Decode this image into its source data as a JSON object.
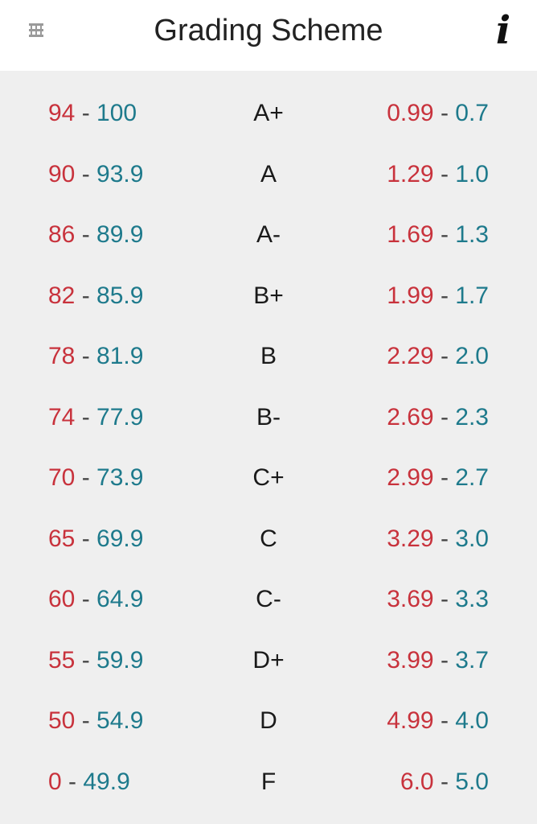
{
  "header": {
    "title": "Grading Scheme",
    "menu_icon": "hamburger-menu-icon",
    "info_icon": "info-icon",
    "info_glyph": "i"
  },
  "colors": {
    "low_value": "#c8323c",
    "high_value": "#1e7a8c",
    "separator": "#444444"
  },
  "separator": " - ",
  "rows": [
    {
      "range_min": "94",
      "range_max": "100",
      "grade": "A+",
      "gpa_high": "0.99",
      "gpa_low": "0.7"
    },
    {
      "range_min": "90",
      "range_max": "93.9",
      "grade": "A",
      "gpa_high": "1.29",
      "gpa_low": "1.0"
    },
    {
      "range_min": "86",
      "range_max": "89.9",
      "grade": "A-",
      "gpa_high": "1.69",
      "gpa_low": "1.3"
    },
    {
      "range_min": "82",
      "range_max": "85.9",
      "grade": "B+",
      "gpa_high": "1.99",
      "gpa_low": "1.7"
    },
    {
      "range_min": "78",
      "range_max": "81.9",
      "grade": "B",
      "gpa_high": "2.29",
      "gpa_low": "2.0"
    },
    {
      "range_min": "74",
      "range_max": "77.9",
      "grade": "B-",
      "gpa_high": "2.69",
      "gpa_low": "2.3"
    },
    {
      "range_min": "70",
      "range_max": "73.9",
      "grade": "C+",
      "gpa_high": "2.99",
      "gpa_low": "2.7"
    },
    {
      "range_min": "65",
      "range_max": "69.9",
      "grade": "C",
      "gpa_high": "3.29",
      "gpa_low": "3.0"
    },
    {
      "range_min": "60",
      "range_max": "64.9",
      "grade": "C-",
      "gpa_high": "3.69",
      "gpa_low": "3.3"
    },
    {
      "range_min": "55",
      "range_max": "59.9",
      "grade": "D+",
      "gpa_high": "3.99",
      "gpa_low": "3.7"
    },
    {
      "range_min": "50",
      "range_max": "54.9",
      "grade": "D",
      "gpa_high": "4.99",
      "gpa_low": "4.0"
    },
    {
      "range_min": "0",
      "range_max": "49.9",
      "grade": "F",
      "gpa_high": "6.0",
      "gpa_low": "5.0"
    }
  ]
}
